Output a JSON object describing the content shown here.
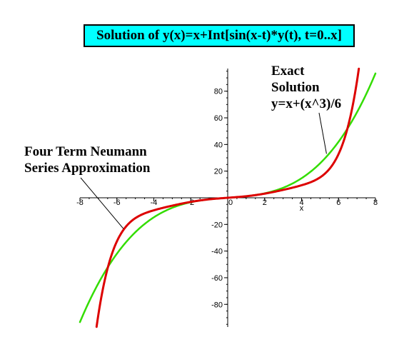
{
  "chart_data": {
    "type": "line",
    "title": "Solution of y(x)=x+Int[sin(x-t)*y(t), t=0..x]",
    "xlabel": "x",
    "ylabel": "",
    "xlim": [
      -8,
      8
    ],
    "ylim": [
      -97,
      97
    ],
    "grid": false,
    "x_ticks": [
      -8,
      -6,
      -4,
      -2,
      0,
      2,
      4,
      6,
      8
    ],
    "y_ticks": [
      -80,
      -60,
      -40,
      -20,
      20,
      40,
      60,
      80
    ],
    "series": [
      {
        "name": "Exact Solution y=x+(x^3)/6",
        "color": "#33dd00",
        "function": "x + x^3/6"
      },
      {
        "name": "Four Term Neumann Series Approximation",
        "color": "#dd0000",
        "function": "x + x^3/6 - x^5/120 + x^7/5040"
      }
    ],
    "annotations": {
      "exact": [
        "Exact",
        "Solution",
        "y=x+(x^3)/6"
      ],
      "neumann": [
        "Four Term Neumann",
        "Series Approximation"
      ]
    }
  }
}
